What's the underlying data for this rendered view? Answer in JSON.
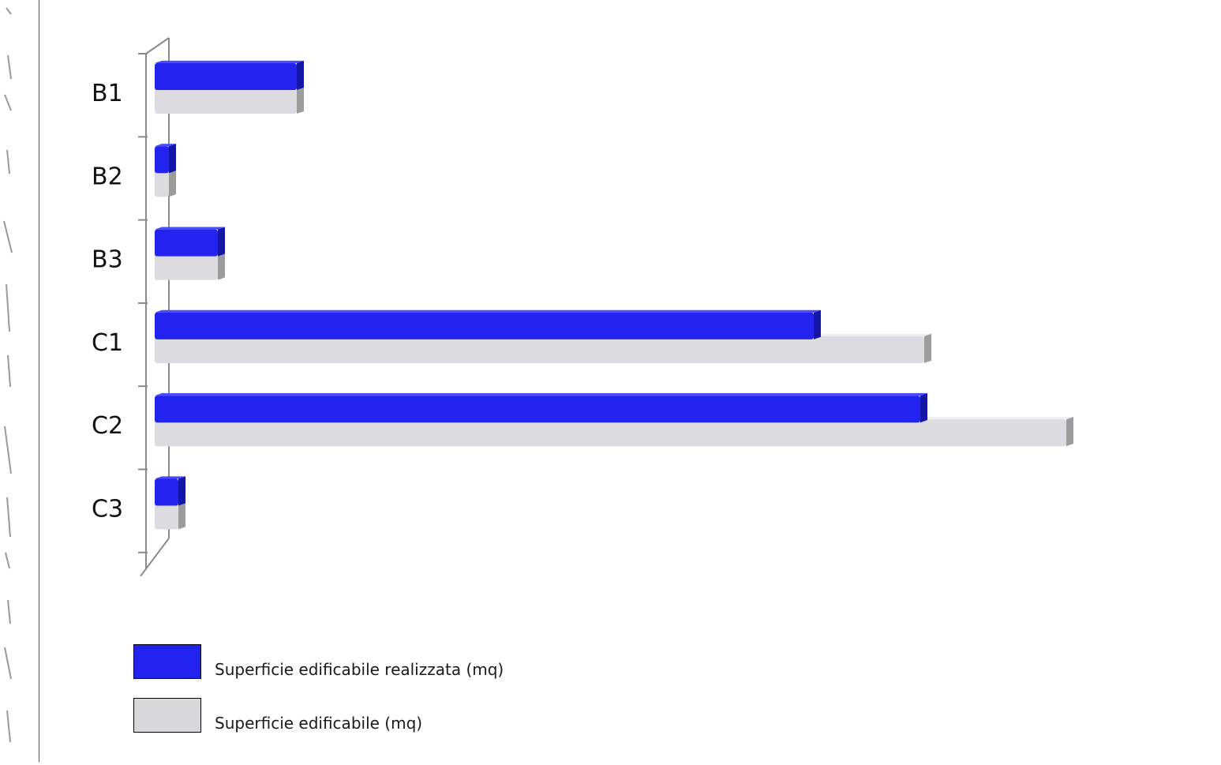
{
  "chart_data": {
    "type": "bar",
    "orientation": "horizontal",
    "categories": [
      "B1",
      "B2",
      "B3",
      "C1",
      "C2",
      "C3"
    ],
    "series": [
      {
        "name": "Superficie edificabile realizzata (mq)",
        "color": "#2222ee",
        "values": [
          180,
          18,
          80,
          835,
          970,
          30
        ]
      },
      {
        "name": "Superficie edificabile (mq)",
        "color": "#d8d8da",
        "values": [
          180,
          18,
          80,
          975,
          1155,
          30
        ]
      }
    ],
    "legend_position": "bottom-left",
    "grid": false
  }
}
